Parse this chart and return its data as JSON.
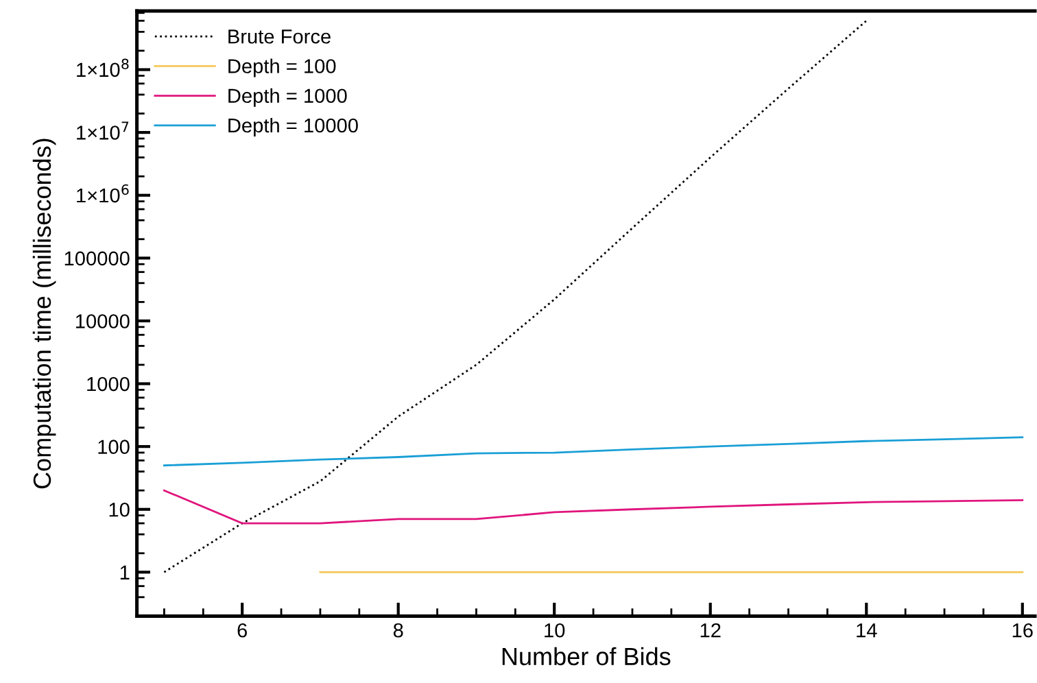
{
  "chart_data": {
    "type": "line",
    "xlabel": "Number of Bids",
    "ylabel": "Computation time (milliseconds)",
    "log": "y",
    "xlim": [
      4.65,
      16.16
    ],
    "xticks": [
      6,
      8,
      10,
      12,
      14,
      16
    ],
    "ylim": [
      0.2,
      860000000.0
    ],
    "yticks": [
      1,
      10,
      100,
      1000,
      10000,
      100000,
      {
        "value": 1000000,
        "label": "1×10$^{6}$"
      },
      {
        "value": 10000000,
        "label": "1×10$^{7}$"
      },
      {
        "value": 100000000,
        "label": "1×10$^{8}$"
      }
    ],
    "grid": false,
    "legend": "top left",
    "marker": "none",
    "series": [
      {
        "name": "Brute Force",
        "color": "#000000",
        "line_style": "dotted",
        "x": [
          5,
          6,
          7,
          8,
          9,
          10,
          11,
          12,
          13,
          14
        ],
        "values": [
          1,
          6,
          28,
          300,
          2000,
          22000,
          300000,
          4000000,
          50000000,
          600000000
        ]
      },
      {
        "name": "Depth = 100",
        "color": "#f5c85a",
        "line_style": "solid",
        "x": [
          7,
          8,
          9,
          10,
          11,
          12,
          13,
          14,
          15,
          16
        ],
        "values": [
          1,
          1,
          1,
          1,
          1,
          1,
          1,
          1,
          1,
          1
        ]
      },
      {
        "name": "Depth = 1000",
        "color": "#e0157d",
        "line_style": "solid",
        "x": [
          5,
          6,
          7,
          8,
          9,
          10,
          11,
          12,
          13,
          14,
          15,
          16
        ],
        "values": [
          20,
          6,
          6,
          7,
          7,
          9,
          10,
          11,
          12,
          13,
          13.5,
          14
        ]
      },
      {
        "name": "Depth = 10000",
        "color": "#1a9fd6",
        "line_style": "solid",
        "x": [
          5,
          6,
          7,
          8,
          9,
          10,
          11,
          12,
          13,
          14,
          15,
          16
        ],
        "values": [
          50,
          55,
          62,
          68,
          78,
          80,
          90,
          100,
          110,
          122,
          130,
          140
        ]
      }
    ]
  }
}
